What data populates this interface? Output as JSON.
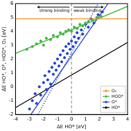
{
  "chart_data": {
    "type": "scatter",
    "x_label": "ΔE HO* [eV]",
    "y_label": "ΔE HO*, O*, HOO*, O₂ [eV]",
    "xlim": [
      -4,
      4
    ],
    "xticks": [
      -4,
      -3,
      -2,
      -1,
      0,
      1,
      2,
      3,
      4
    ],
    "ylim": [
      -2,
      6
    ],
    "yticks": [
      -2,
      -1,
      0,
      1,
      2,
      3,
      4,
      5,
      6
    ],
    "grid": false,
    "legend": "lower right",
    "annotations": [
      "strong binding",
      "weak binding"
    ],
    "reference_lines": [
      {
        "x": 0,
        "color": "#808080",
        "line_style": "dashed"
      }
    ],
    "series": [
      {
        "name": "O₂",
        "color": "#ff8c1a",
        "lines": [
          {
            "x": [
              -4,
              4
            ],
            "y": [
              4.9,
              4.9
            ],
            "line_style": "solid"
          }
        ]
      },
      {
        "name": "HOO*",
        "color": "#3cb83c",
        "marker": "o",
        "points": {
          "x": [
            -3.2,
            -2.8,
            -2.5,
            -2.2,
            -2.0,
            -1.8,
            -1.5,
            -1.3,
            -1.0,
            -0.8,
            -0.6,
            -0.4,
            -0.2,
            0.0,
            0.2,
            0.4,
            0.6,
            0.8,
            1.0,
            1.2,
            1.5,
            1.8,
            2.1
          ],
          "y": [
            2.7,
            2.9,
            3.1,
            3.3,
            3.0,
            3.5,
            3.4,
            3.7,
            3.6,
            3.9,
            3.8,
            4.0,
            4.1,
            4.0,
            4.3,
            4.2,
            4.5,
            4.4,
            4.6,
            4.7,
            4.8,
            5.0,
            5.1
          ]
        },
        "lines": [
          {
            "x": [
              -4,
              4
            ],
            "y": [
              2.4,
              5.8
            ],
            "line_style": "solid"
          }
        ]
      },
      {
        "name": "O*",
        "color": "#2040d0",
        "marker": "o",
        "points": {
          "x": [
            -3.0,
            -2.8,
            -2.6,
            -2.5,
            -2.3,
            -2.2,
            -2.0,
            -1.9,
            -1.8,
            -1.7,
            -1.6,
            -1.5,
            -1.4,
            -1.3,
            -1.2,
            -1.1,
            -1.0,
            -0.9,
            -0.8,
            -0.7,
            -0.6,
            -0.5,
            -0.4,
            -0.3,
            -0.2,
            -0.1,
            0.0,
            0.1,
            0.2,
            0.3,
            0.4,
            0.5,
            0.7,
            0.8,
            1.0,
            1.2,
            1.4,
            1.6,
            1.9,
            2.2
          ],
          "y": [
            -1.6,
            -1.0,
            -0.5,
            -1.2,
            0.0,
            -0.6,
            0.3,
            0.8,
            -0.2,
            0.5,
            1.1,
            0.2,
            1.4,
            0.9,
            1.7,
            1.2,
            2.0,
            1.5,
            2.3,
            1.8,
            2.6,
            2.1,
            2.9,
            2.4,
            3.1,
            2.7,
            3.3,
            2.9,
            3.6,
            3.2,
            3.9,
            3.5,
            4.1,
            3.8,
            4.5,
            4.3,
            4.9,
            4.6,
            5.2,
            5.4
          ]
        },
        "lines": [
          {
            "x": [
              -2.9,
              2.6
            ],
            "y": [
              -2,
              6
            ],
            "line_style": "solid"
          },
          {
            "x": [
              -2.4,
              1.9
            ],
            "y": [
              -2,
              6
            ],
            "line_style": "dotted"
          }
        ]
      },
      {
        "name": "HO*",
        "color": "#000000",
        "lines": [
          {
            "x": [
              -4,
              4
            ],
            "y": [
              -1.5,
              3.2
            ],
            "line_style": "solid"
          }
        ]
      }
    ]
  }
}
